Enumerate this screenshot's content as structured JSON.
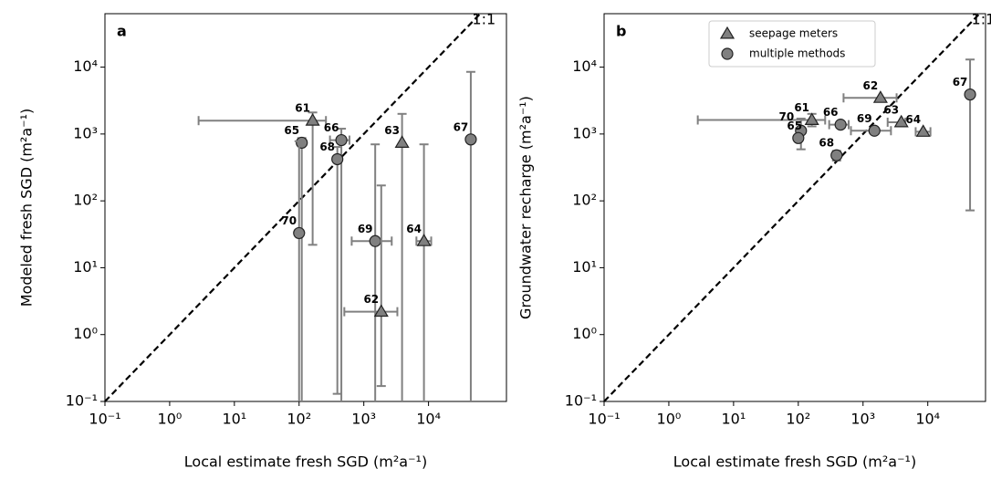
{
  "chart_data": [
    {
      "type": "scatter",
      "panel_label": "a",
      "xlabel": "Local estimate fresh SGD (m²a⁻¹)",
      "ylabel": "Modeled fresh SGD (m²a⁻¹)",
      "xscale": "log",
      "yscale": "log",
      "xlim": [
        0.1,
        160000
      ],
      "ylim": [
        0.1,
        63000
      ],
      "xticks": [
        {
          "value": 0.1,
          "label": "10⁻¹"
        },
        {
          "value": 1,
          "label": "10⁰"
        },
        {
          "value": 10,
          "label": "10¹"
        },
        {
          "value": 100,
          "label": "10²"
        },
        {
          "value": 1000,
          "label": "10³"
        },
        {
          "value": 10000,
          "label": "10⁴"
        }
      ],
      "yticks": [
        {
          "value": 0.1,
          "label": "10⁻¹"
        },
        {
          "value": 1,
          "label": "10⁰"
        },
        {
          "value": 10,
          "label": "10¹"
        },
        {
          "value": 100,
          "label": "10²"
        },
        {
          "value": 1000,
          "label": "10³"
        },
        {
          "value": 10000,
          "label": "10⁴"
        }
      ],
      "line_label": "1:1",
      "color": "#808080",
      "points": [
        {
          "label": "61",
          "marker": "triangle",
          "x": 162,
          "y": 1585,
          "xerr": [
            2.8,
            260
          ],
          "yerr": [
            22,
            2100
          ]
        },
        {
          "label": "65",
          "marker": "circle",
          "x": 110,
          "y": 740,
          "xerr": null,
          "yerr": [
            0.1,
            870
          ]
        },
        {
          "label": "66",
          "marker": "circle",
          "x": 450,
          "y": 810,
          "xerr": [
            300,
            600
          ],
          "yerr": [
            0.09,
            1200
          ]
        },
        {
          "label": "68",
          "marker": "circle",
          "x": 390,
          "y": 420,
          "xerr": null,
          "yerr": [
            0.13,
            640
          ]
        },
        {
          "label": "70",
          "marker": "circle",
          "x": 100,
          "y": 33,
          "xerr": null,
          "yerr": [
            0.1,
            780
          ]
        },
        {
          "label": "63",
          "marker": "triangle",
          "x": 3900,
          "y": 740,
          "xerr": null,
          "yerr": [
            0.1,
            2000
          ]
        },
        {
          "label": "69",
          "marker": "circle",
          "x": 1500,
          "y": 25,
          "xerr": [
            650,
            2700
          ],
          "yerr": [
            0.1,
            700
          ]
        },
        {
          "label": "62",
          "marker": "triangle",
          "x": 1860,
          "y": 2.2,
          "xerr": [
            500,
            3300
          ],
          "yerr": [
            0.17,
            170
          ]
        },
        {
          "label": "64",
          "marker": "triangle",
          "x": 8500,
          "y": 25,
          "xerr": [
            6500,
            11000
          ],
          "yerr": [
            0.1,
            700
          ]
        },
        {
          "label": "67",
          "marker": "circle",
          "x": 45000,
          "y": 830,
          "xerr": null,
          "yerr": [
            0.1,
            8500
          ]
        }
      ]
    },
    {
      "type": "scatter",
      "panel_label": "b",
      "xlabel": "Local estimate fresh SGD (m²a⁻¹)",
      "ylabel": "Groundwater recharge (m²a⁻¹)",
      "xscale": "log",
      "yscale": "log",
      "xlim": [
        0.1,
        78000
      ],
      "ylim": [
        0.1,
        63000
      ],
      "xticks": [
        {
          "value": 0.1,
          "label": "10⁻¹"
        },
        {
          "value": 1,
          "label": "10⁰"
        },
        {
          "value": 10,
          "label": "10¹"
        },
        {
          "value": 100,
          "label": "10²"
        },
        {
          "value": 1000,
          "label": "10³"
        },
        {
          "value": 10000,
          "label": "10⁴"
        }
      ],
      "yticks": [
        {
          "value": 0.1,
          "label": "10⁻¹"
        },
        {
          "value": 1,
          "label": "10⁰"
        },
        {
          "value": 10,
          "label": "10¹"
        },
        {
          "value": 100,
          "label": "10²"
        },
        {
          "value": 1000,
          "label": "10³"
        },
        {
          "value": 10000,
          "label": "10⁴"
        }
      ],
      "line_label": "1:1",
      "color": "#808080",
      "legend": [
        {
          "name": "seepage meters",
          "marker": "triangle"
        },
        {
          "name": "multiple methods",
          "marker": "circle"
        }
      ],
      "points": [
        {
          "label": "61",
          "marker": "triangle",
          "x": 162,
          "y": 1620,
          "xerr": [
            2.8,
            260
          ],
          "yerr": [
            1300,
            2000
          ]
        },
        {
          "label": "65",
          "marker": "circle",
          "x": 110,
          "y": 1120,
          "xerr": null,
          "yerr": [
            590,
            1700
          ]
        },
        {
          "label": "66",
          "marker": "circle",
          "x": 450,
          "y": 1380,
          "xerr": [
            300,
            600
          ],
          "yerr": null
        },
        {
          "label": "68",
          "marker": "circle",
          "x": 390,
          "y": 480,
          "xerr": null,
          "yerr": [
            400,
            560
          ]
        },
        {
          "label": "70",
          "marker": "circle",
          "x": 100,
          "y": 870,
          "xerr": null,
          "yerr": null
        },
        {
          "label": "63",
          "marker": "triangle",
          "x": 3900,
          "y": 1500,
          "xerr": [
            2400,
            4500
          ],
          "yerr": null
        },
        {
          "label": "69",
          "marker": "circle",
          "x": 1500,
          "y": 1120,
          "xerr": [
            650,
            2700
          ],
          "yerr": null
        },
        {
          "label": "62",
          "marker": "triangle",
          "x": 1860,
          "y": 3470,
          "xerr": [
            500,
            3300
          ],
          "yerr": null
        },
        {
          "label": "64",
          "marker": "triangle",
          "x": 8500,
          "y": 1080,
          "xerr": [
            6500,
            11000
          ],
          "yerr": null
        },
        {
          "label": "67",
          "marker": "circle",
          "x": 45000,
          "y": 3900,
          "xerr": null,
          "yerr": [
            72,
            13000
          ]
        }
      ]
    }
  ]
}
